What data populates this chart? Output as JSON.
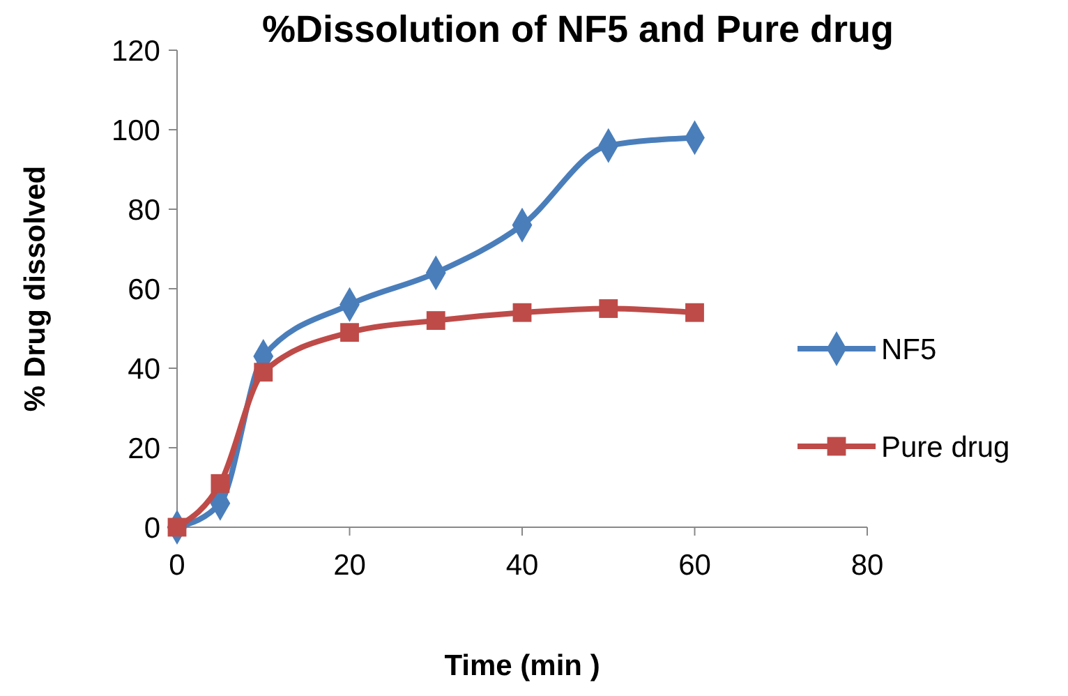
{
  "chart_data": {
    "type": "line",
    "title": "%Dissolution of NF5 and Pure drug",
    "xlabel": "Time (min )",
    "ylabel": "% Drug dissolved",
    "x": [
      0,
      5,
      10,
      20,
      30,
      40,
      50,
      60
    ],
    "series": [
      {
        "name": "NF5",
        "color": "#4a7ebb",
        "marker": "diamond",
        "values": [
          0,
          6,
          43,
          56,
          64,
          76,
          96,
          98
        ]
      },
      {
        "name": "Pure drug",
        "color": "#be4b48",
        "marker": "square",
        "values": [
          0,
          11,
          39,
          49,
          52,
          54,
          55,
          54
        ]
      }
    ],
    "xlim": [
      0,
      80
    ],
    "xticks": [
      0,
      20,
      40,
      60,
      80
    ],
    "ylim": [
      0,
      120
    ],
    "yticks": [
      0,
      20,
      40,
      60,
      80,
      100,
      120
    ],
    "legend": "right",
    "grid": false
  }
}
